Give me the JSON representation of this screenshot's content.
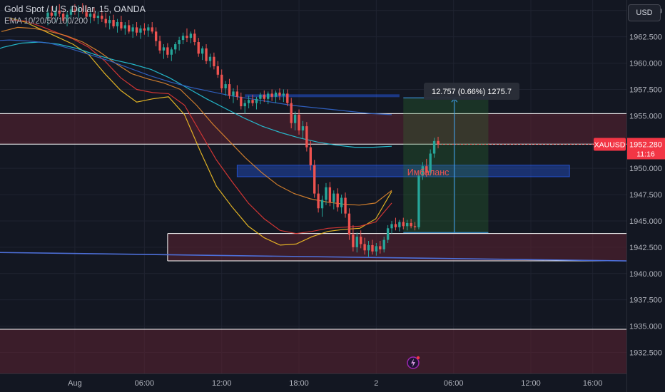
{
  "header": {
    "title": "Gold Spot / U.S. Dollar, 15, OANDA",
    "indicator": "EMA 10/20/50/100/200",
    "currency_label": "USD"
  },
  "price_tag": {
    "symbol": "XAUUSD",
    "price": "1952.280",
    "countdown": "11:16"
  },
  "measure": {
    "label": "12.757 (0.66%) 1275.7",
    "from": 1943.9,
    "to": 1956.7
  },
  "annotation": {
    "text": "Имбаланс"
  },
  "colors": {
    "background": "#131722",
    "up": "#26a69a",
    "down": "#ef5350",
    "zone_fill": "#5c2331",
    "imbalance": "#2962ff",
    "ema10": "#f7c325",
    "ema20": "#e53935",
    "ema50": "#e0862d",
    "ema100": "#26c6da",
    "ema200": "#3366cc",
    "trendline": "#4d6fd8"
  },
  "chart_data": {
    "type": "candlestick",
    "symbol": "XAUUSD",
    "timeframe": "15",
    "y_axis": {
      "ylim": [
        1930.5,
        1966.0
      ],
      "ticks": [
        1932.5,
        1935.0,
        1937.5,
        1940.0,
        1942.5,
        1945.0,
        1947.5,
        1950.0,
        1952.5,
        1955.0,
        1957.5,
        1960.0,
        1962.5,
        1965.0
      ],
      "tick_labels": [
        "1932.500",
        "1935.000",
        "1937.500",
        "1940.000",
        "1942.500",
        "1945.000",
        "1947.500",
        "1950.000",
        "1952.500",
        "1955.000",
        "1957.500",
        "1960.000",
        "1962.500",
        "1965.000"
      ]
    },
    "x_axis": {
      "xlim": [
        0,
        161
      ],
      "ticks": [
        0,
        24,
        48,
        72,
        96,
        120,
        144
      ],
      "tick_labels": [
        "Aug",
        "06:00",
        "12:00",
        "18:00",
        "2",
        "06:00",
        "12:00",
        "16:00"
      ],
      "tick_index": [
        19,
        37,
        57,
        77,
        97,
        117,
        137,
        153
      ]
    },
    "candles": [
      [
        1964.2,
        1965.1,
        1963.6,
        1964.8
      ],
      [
        1964.8,
        1965.4,
        1964.1,
        1964.5
      ],
      [
        1964.5,
        1965.3,
        1963.9,
        1965.0
      ],
      [
        1965.0,
        1965.6,
        1964.4,
        1964.7
      ],
      [
        1964.7,
        1965.2,
        1963.8,
        1964.0
      ],
      [
        1964.0,
        1964.9,
        1963.5,
        1964.6
      ],
      [
        1964.6,
        1965.4,
        1964.2,
        1965.1
      ],
      [
        1965.1,
        1965.6,
        1964.6,
        1964.9
      ],
      [
        1964.9,
        1965.5,
        1964.3,
        1965.2
      ],
      [
        1965.2,
        1965.7,
        1964.7,
        1965.0
      ],
      [
        1965.0,
        1965.5,
        1964.2,
        1964.4
      ],
      [
        1964.4,
        1965.0,
        1963.8,
        1964.7
      ],
      [
        1964.7,
        1965.3,
        1964.0,
        1964.3
      ],
      [
        1964.3,
        1964.9,
        1963.7,
        1964.5
      ],
      [
        1964.5,
        1965.1,
        1963.9,
        1964.2
      ],
      [
        1964.2,
        1964.8,
        1963.4,
        1963.8
      ],
      [
        1963.8,
        1964.5,
        1963.2,
        1964.1
      ],
      [
        1964.1,
        1964.6,
        1963.3,
        1963.5
      ],
      [
        1963.5,
        1964.2,
        1962.9,
        1963.9
      ],
      [
        1963.9,
        1964.5,
        1963.1,
        1963.3
      ],
      [
        1963.3,
        1963.9,
        1962.7,
        1963.6
      ],
      [
        1963.6,
        1964.1,
        1962.8,
        1963.0
      ],
      [
        1963.0,
        1963.7,
        1962.4,
        1963.4
      ],
      [
        1963.4,
        1963.9,
        1962.6,
        1962.9
      ],
      [
        1962.9,
        1963.6,
        1962.3,
        1963.3
      ],
      [
        1963.3,
        1963.8,
        1962.7,
        1963.1
      ],
      [
        1963.1,
        1963.7,
        1962.5,
        1963.4
      ],
      [
        1963.4,
        1963.9,
        1962.8,
        1963.0
      ],
      [
        1963.0,
        1963.4,
        1961.6,
        1962.1
      ],
      [
        1962.1,
        1962.6,
        1960.9,
        1961.2
      ],
      [
        1961.2,
        1961.8,
        1960.4,
        1961.5
      ],
      [
        1961.5,
        1961.9,
        1960.5,
        1960.8
      ],
      [
        1960.8,
        1961.5,
        1960.2,
        1961.3
      ],
      [
        1961.3,
        1962.0,
        1960.9,
        1961.8
      ],
      [
        1961.8,
        1962.5,
        1961.2,
        1962.2
      ],
      [
        1962.2,
        1962.9,
        1961.8,
        1962.6
      ],
      [
        1962.6,
        1963.3,
        1962.0,
        1962.4
      ],
      [
        1962.4,
        1963.0,
        1961.9,
        1962.8
      ],
      [
        1962.8,
        1963.2,
        1961.7,
        1962.0
      ],
      [
        1962.0,
        1962.4,
        1960.6,
        1960.9
      ],
      [
        1960.9,
        1961.6,
        1960.3,
        1961.4
      ],
      [
        1961.4,
        1961.8,
        1959.9,
        1960.2
      ],
      [
        1960.2,
        1960.9,
        1959.6,
        1960.6
      ],
      [
        1960.6,
        1961.0,
        1959.4,
        1959.7
      ],
      [
        1959.7,
        1960.2,
        1958.6,
        1958.9
      ],
      [
        1958.9,
        1959.4,
        1957.2,
        1957.6
      ],
      [
        1957.6,
        1958.3,
        1956.9,
        1958.0
      ],
      [
        1958.0,
        1958.5,
        1956.6,
        1956.9
      ],
      [
        1956.9,
        1957.6,
        1956.2,
        1957.3
      ],
      [
        1957.3,
        1957.9,
        1956.5,
        1956.8
      ],
      [
        1956.8,
        1957.2,
        1955.6,
        1955.9
      ],
      [
        1955.9,
        1956.5,
        1955.2,
        1956.2
      ],
      [
        1956.2,
        1956.9,
        1955.7,
        1956.5
      ],
      [
        1956.5,
        1957.0,
        1955.9,
        1956.2
      ],
      [
        1956.2,
        1956.8,
        1955.6,
        1956.6
      ],
      [
        1956.6,
        1957.2,
        1956.1,
        1957.0
      ],
      [
        1957.0,
        1957.4,
        1956.3,
        1956.6
      ],
      [
        1956.6,
        1957.3,
        1956.1,
        1957.1
      ],
      [
        1957.1,
        1957.5,
        1956.4,
        1956.8
      ],
      [
        1956.8,
        1957.4,
        1956.2,
        1957.2
      ],
      [
        1957.2,
        1957.6,
        1956.5,
        1956.9
      ],
      [
        1956.9,
        1957.5,
        1956.3,
        1957.1
      ],
      [
        1957.1,
        1957.5,
        1955.9,
        1956.2
      ],
      [
        1956.2,
        1956.7,
        1953.8,
        1954.3
      ],
      [
        1954.3,
        1955.4,
        1953.6,
        1955.1
      ],
      [
        1955.1,
        1955.6,
        1953.2,
        1953.6
      ],
      [
        1953.6,
        1954.5,
        1952.8,
        1954.0
      ],
      [
        1954.0,
        1954.4,
        1951.6,
        1952.0
      ],
      [
        1952.0,
        1952.6,
        1949.8,
        1950.3
      ],
      [
        1950.3,
        1950.8,
        1947.2,
        1947.6
      ],
      [
        1947.6,
        1948.5,
        1945.8,
        1946.2
      ],
      [
        1946.2,
        1947.4,
        1945.4,
        1947.0
      ],
      [
        1947.0,
        1948.6,
        1946.5,
        1948.2
      ],
      [
        1948.2,
        1948.7,
        1946.4,
        1946.8
      ],
      [
        1946.8,
        1947.9,
        1946.1,
        1947.6
      ],
      [
        1947.6,
        1948.1,
        1945.9,
        1946.3
      ],
      [
        1946.3,
        1947.5,
        1945.7,
        1947.2
      ],
      [
        1947.2,
        1947.7,
        1945.3,
        1945.7
      ],
      [
        1945.7,
        1946.2,
        1943.2,
        1943.7
      ],
      [
        1943.7,
        1944.6,
        1942.1,
        1942.5
      ],
      [
        1942.5,
        1943.9,
        1942.0,
        1943.5
      ],
      [
        1943.5,
        1944.1,
        1942.4,
        1942.8
      ],
      [
        1942.8,
        1943.4,
        1941.8,
        1942.2
      ],
      [
        1942.2,
        1943.1,
        1941.6,
        1942.7
      ],
      [
        1942.7,
        1943.2,
        1941.8,
        1942.1
      ],
      [
        1942.1,
        1942.9,
        1941.7,
        1942.6
      ],
      [
        1942.6,
        1943.1,
        1941.9,
        1942.3
      ],
      [
        1942.3,
        1943.5,
        1942.0,
        1943.2
      ],
      [
        1943.2,
        1944.6,
        1942.9,
        1944.3
      ],
      [
        1944.3,
        1945.0,
        1943.8,
        1944.7
      ],
      [
        1944.7,
        1945.3,
        1944.1,
        1944.4
      ],
      [
        1944.4,
        1945.1,
        1944.0,
        1944.9
      ],
      [
        1944.9,
        1945.3,
        1944.2,
        1944.5
      ],
      [
        1944.5,
        1945.1,
        1944.1,
        1944.8
      ],
      [
        1944.8,
        1945.2,
        1944.3,
        1944.5
      ],
      [
        1944.5,
        1944.9,
        1944.1,
        1944.4
      ],
      [
        1944.4,
        1949.6,
        1944.2,
        1949.3
      ],
      [
        1949.3,
        1950.6,
        1948.9,
        1950.2
      ],
      [
        1950.2,
        1950.9,
        1949.2,
        1949.6
      ],
      [
        1949.6,
        1951.8,
        1949.3,
        1951.4
      ],
      [
        1951.4,
        1952.9,
        1951.0,
        1952.6
      ],
      [
        1952.6,
        1953.0,
        1951.9,
        1952.3
      ]
    ],
    "ema": [
      {
        "name": "EMA 10",
        "values": [
          1964.3,
          1963.9,
          1963.2,
          1962.5,
          1961.8,
          1960.8,
          1959.0,
          1957.4,
          1956.3,
          1956.6,
          1956.8,
          1955.1,
          1951.6,
          1948.3,
          1946.3,
          1944.5,
          1943.4,
          1942.7,
          1942.8,
          1943.5,
          1944.0,
          1944.2,
          1944.3,
          1945.2,
          1947.8
        ]
      },
      {
        "name": "EMA 20",
        "values": [
          1964.1,
          1964.0,
          1963.5,
          1962.9,
          1962.3,
          1961.5,
          1960.2,
          1958.6,
          1957.5,
          1957.2,
          1957.1,
          1956.0,
          1953.4,
          1950.8,
          1948.7,
          1946.7,
          1945.2,
          1944.1,
          1943.8,
          1944.0,
          1944.3,
          1944.4,
          1944.5,
          1944.9,
          1946.7
        ]
      },
      {
        "name": "EMA 50",
        "values": [
          1963.0,
          1963.4,
          1963.3,
          1963.0,
          1962.6,
          1962.0,
          1961.1,
          1960.0,
          1959.0,
          1958.5,
          1958.1,
          1957.5,
          1956.0,
          1954.2,
          1952.6,
          1951.0,
          1949.6,
          1948.4,
          1947.6,
          1947.1,
          1946.8,
          1946.6,
          1946.5,
          1946.7,
          1947.9
        ]
      },
      {
        "name": "EMA 100",
        "values": [
          1958.5,
          1959.8,
          1960.8,
          1961.5,
          1961.9,
          1962.0,
          1961.8,
          1961.4,
          1960.8,
          1960.3,
          1959.9,
          1959.4,
          1958.6,
          1957.6,
          1956.6,
          1955.7,
          1954.8,
          1954.0,
          1953.4,
          1952.9,
          1952.5,
          1952.2,
          1952.0,
          1952.0,
          1952.1
        ]
      },
      {
        "name": "EMA 200",
        "values": [
          1959.8,
          1960.6,
          1961.3,
          1961.8,
          1962.1,
          1962.2,
          1962.1,
          1961.9,
          1961.4,
          1960.8,
          1960.2,
          1959.5,
          1958.8,
          1958.2,
          1957.7,
          1957.3,
          1956.9,
          1956.6,
          1956.3,
          1956.0,
          1955.8,
          1955.6,
          1955.4,
          1955.2,
          1955.1
        ]
      }
    ],
    "zones": [
      {
        "top": 1955.2,
        "bottom": 1952.3
      },
      {
        "top": 1943.8,
        "bottom": 1941.2
      },
      {
        "top": 1934.7,
        "bottom": 1930.5
      }
    ],
    "imbalance_zone": {
      "top": 1950.3,
      "bottom": 1949.2
    },
    "upper_imbalance_line": 1956.9,
    "trendline": {
      "from": 1942.0,
      "to": 1941.2
    },
    "current_price": 1952.28,
    "measurement": {
      "from": 1943.9,
      "to": 1956.7,
      "change": 12.757,
      "percent": 0.66,
      "ticks": 1275.7
    }
  }
}
